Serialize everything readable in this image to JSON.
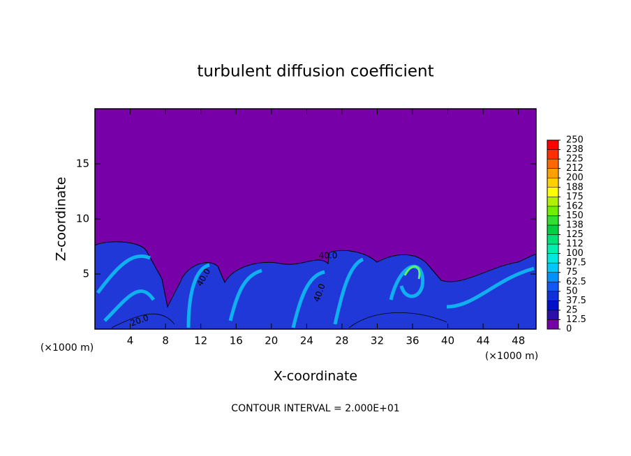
{
  "chart_data": {
    "type": "contour",
    "title": "turbulent diffusion coefficient",
    "x_label": "X-coordinate",
    "y_label": "Z-coordinate",
    "x_unit": "(×1000 m)",
    "y_unit": "(×1000 m)",
    "footer": "CONTOUR INTERVAL = 2.000E+01",
    "xlim": [
      0,
      50
    ],
    "ylim": [
      0,
      20
    ],
    "xticks": [
      4,
      8,
      12,
      16,
      20,
      24,
      28,
      32,
      36,
      40,
      44,
      48
    ],
    "yticks": [
      5,
      10,
      15
    ],
    "background_color": "#7800a8",
    "contour_labels": [
      "40.0",
      "40.0",
      "40.0",
      "20.0"
    ],
    "colorbar": {
      "ticks": [
        0,
        12.5,
        25,
        37.5,
        50,
        62.5,
        75,
        87.5,
        100,
        112,
        125,
        138,
        150,
        162,
        175,
        188,
        200,
        212,
        225,
        238,
        250
      ],
      "colors": [
        "#7800a8",
        "#2a10a8",
        "#0010c8",
        "#1030e0",
        "#1058f0",
        "#0090ff",
        "#00c8ff",
        "#00e8e0",
        "#00f0b0",
        "#00e078",
        "#00d040",
        "#30e030",
        "#70f000",
        "#b0f000",
        "#ffff00",
        "#ffd000",
        "#ffa000",
        "#ff6800",
        "#ff3000",
        "#ff0000"
      ]
    }
  }
}
